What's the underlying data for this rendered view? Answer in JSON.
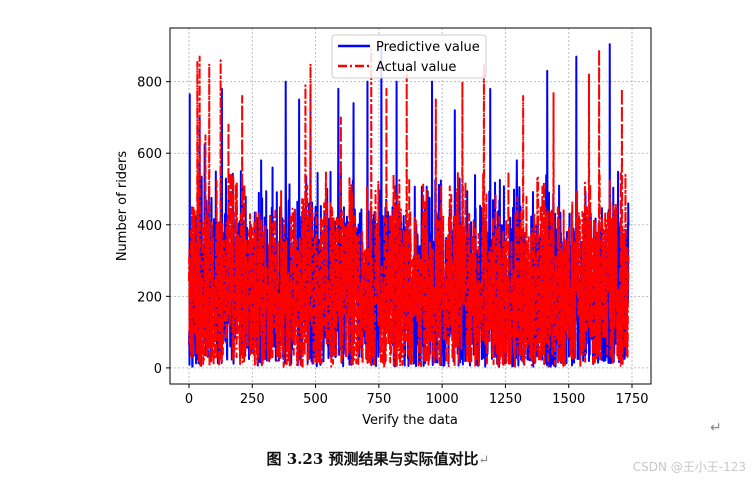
{
  "chart_data": {
    "type": "line",
    "xlabel": "Verify the data",
    "ylabel": "Number of riders",
    "xlim": [
      -75,
      1825
    ],
    "ylim": [
      -45,
      950
    ],
    "xticks": [
      0,
      250,
      500,
      750,
      1000,
      1250,
      1500,
      1750
    ],
    "yticks": [
      0,
      200,
      400,
      600,
      800
    ],
    "grid": true,
    "legend_position": "upper-center",
    "n_points": 1737,
    "series": [
      {
        "name": "Predictive value",
        "color": "#0000ff",
        "style": "solid",
        "approx_max": 905,
        "peaks": [
          [
            3,
            765
          ],
          [
            42,
            700
          ],
          [
            62,
            625
          ],
          [
            130,
            780
          ],
          [
            285,
            580
          ],
          [
            330,
            560
          ],
          [
            382,
            800
          ],
          [
            435,
            750
          ],
          [
            480,
            780
          ],
          [
            590,
            780
          ],
          [
            650,
            740
          ],
          [
            705,
            800
          ],
          [
            760,
            895
          ],
          [
            820,
            800
          ],
          [
            960,
            800
          ],
          [
            1050,
            720
          ],
          [
            1190,
            780
          ],
          [
            1295,
            580
          ],
          [
            1415,
            830
          ],
          [
            1530,
            870
          ],
          [
            1662,
            905
          ],
          [
            1735,
            460
          ]
        ]
      },
      {
        "name": "Actual value",
        "color": "#ff0000",
        "style": "dashdot",
        "approx_max": 890,
        "peaks": [
          [
            33,
            855
          ],
          [
            42,
            870
          ],
          [
            65,
            650
          ],
          [
            80,
            850
          ],
          [
            125,
            860
          ],
          [
            156,
            680
          ],
          [
            210,
            760
          ],
          [
            460,
            790
          ],
          [
            480,
            850
          ],
          [
            600,
            700
          ],
          [
            720,
            890
          ],
          [
            780,
            780
          ],
          [
            860,
            820
          ],
          [
            975,
            750
          ],
          [
            1080,
            800
          ],
          [
            1165,
            850
          ],
          [
            1320,
            760
          ],
          [
            1440,
            770
          ],
          [
            1580,
            820
          ],
          [
            1620,
            890
          ],
          [
            1710,
            780
          ]
        ]
      }
    ]
  },
  "caption": {
    "text": "图 3.23  预测结果与实际值对比",
    "return_mark": "↵"
  },
  "paragraph_mark": "↵",
  "watermark": "CSDN @王小王-123"
}
